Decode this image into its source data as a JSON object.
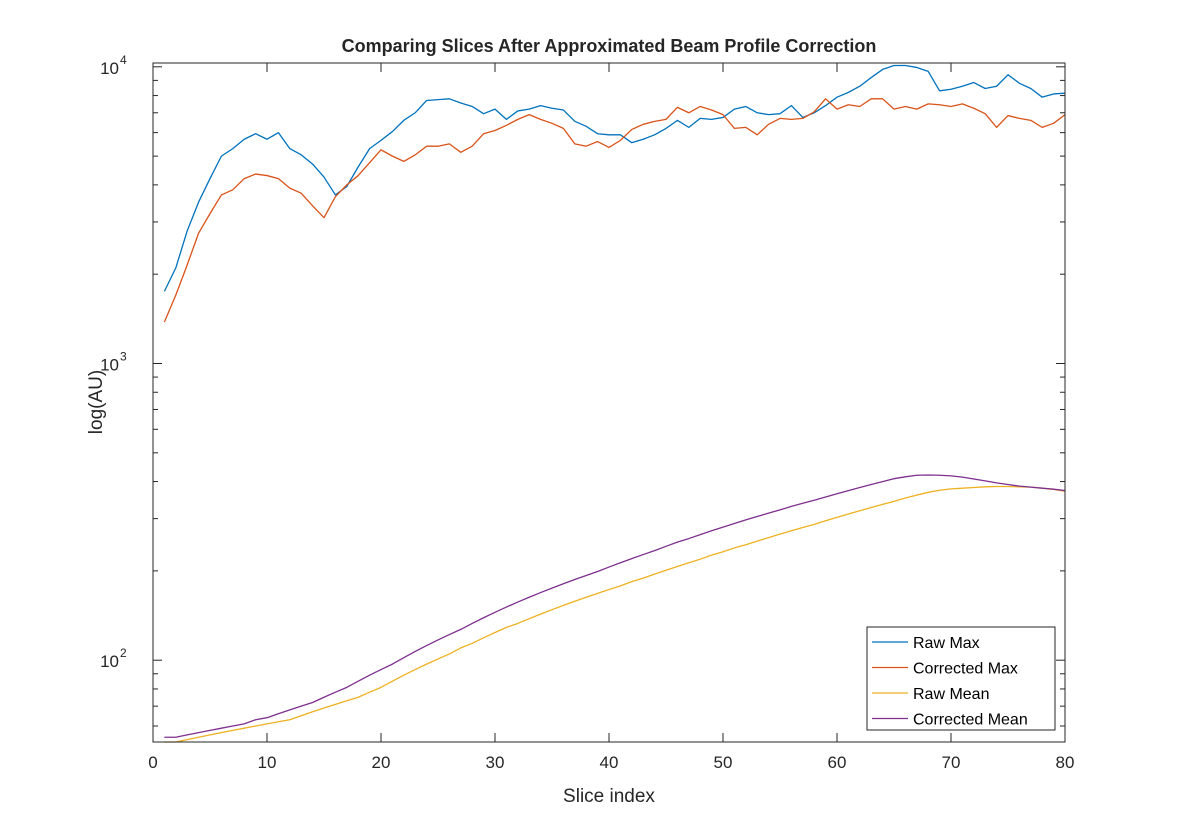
{
  "chart_data": {
    "type": "line",
    "title": "Comparing Slices After Approximated Beam Profile Correction",
    "xlabel": "Slice index",
    "ylabel": "log(AU)",
    "xlim": [
      0,
      80
    ],
    "ylim": [
      53,
      10300
    ],
    "yscale": "log",
    "grid": false,
    "legend_position": "bottom-right",
    "x_ticks": [
      "0",
      "10",
      "20",
      "30",
      "40",
      "50",
      "60",
      "70",
      "80"
    ],
    "y_ticks": [
      {
        "base": "10",
        "exp": "2",
        "value": 100
      },
      {
        "base": "10",
        "exp": "3",
        "value": 1000
      },
      {
        "base": "10",
        "exp": "4",
        "value": 10000
      }
    ],
    "x": [
      1,
      2,
      3,
      4,
      5,
      6,
      7,
      8,
      9,
      10,
      11,
      12,
      13,
      14,
      15,
      16,
      17,
      18,
      19,
      20,
      21,
      22,
      23,
      24,
      25,
      26,
      27,
      28,
      29,
      30,
      31,
      32,
      33,
      34,
      35,
      36,
      37,
      38,
      39,
      40,
      41,
      42,
      43,
      44,
      45,
      46,
      47,
      48,
      49,
      50,
      51,
      52,
      53,
      54,
      55,
      56,
      57,
      58,
      59,
      60,
      61,
      62,
      63,
      64,
      65,
      66,
      67,
      68,
      69,
      70,
      71,
      72,
      73,
      74,
      75,
      76,
      77,
      78,
      79,
      80
    ],
    "series": [
      {
        "name": "Raw Max",
        "color": "#0072BD",
        "values": [
          1750,
          2100,
          2800,
          3500,
          4200,
          5000,
          5300,
          5700,
          5950,
          5700,
          6000,
          5300,
          5050,
          4700,
          4250,
          3700,
          3950,
          4600,
          5300,
          5650,
          6050,
          6600,
          7000,
          7700,
          7750,
          7800,
          7550,
          7350,
          6950,
          7200,
          6650,
          7100,
          7200,
          7400,
          7250,
          7150,
          6550,
          6300,
          5950,
          5900,
          5900,
          5550,
          5700,
          5900,
          6200,
          6600,
          6250,
          6700,
          6650,
          6750,
          7200,
          7350,
          7000,
          6900,
          6950,
          7400,
          6750,
          7000,
          7400,
          7900,
          8200,
          8600,
          9200,
          9800,
          10100,
          10100,
          9950,
          9650,
          8300,
          8400,
          8600,
          8850,
          8450,
          8600,
          9400,
          8800,
          8450,
          7900,
          8100,
          8150
        ]
      },
      {
        "name": "Corrected Max",
        "color": "#D95319",
        "values": [
          1380,
          1700,
          2150,
          2750,
          3200,
          3700,
          3850,
          4200,
          4350,
          4300,
          4200,
          3900,
          3750,
          3400,
          3100,
          3650,
          4000,
          4300,
          4750,
          5250,
          5000,
          4800,
          5050,
          5400,
          5400,
          5500,
          5150,
          5400,
          5950,
          6100,
          6350,
          6650,
          6900,
          6650,
          6450,
          6200,
          5500,
          5400,
          5600,
          5350,
          5650,
          6150,
          6400,
          6550,
          6650,
          7300,
          7000,
          7350,
          7150,
          6900,
          6200,
          6250,
          5900,
          6400,
          6700,
          6650,
          6700,
          7050,
          7800,
          7200,
          7450,
          7350,
          7800,
          7800,
          7200,
          7350,
          7200,
          7500,
          7450,
          7350,
          7500,
          7250,
          6950,
          6250,
          6850,
          6700,
          6600,
          6250,
          6450,
          6900
        ]
      },
      {
        "name": "Raw Mean",
        "color": "#EDB120",
        "values": [
          53,
          53,
          54,
          55,
          56,
          57,
          58,
          59,
          60,
          61,
          62,
          63,
          65,
          67,
          69,
          71,
          73,
          75,
          78,
          81,
          85,
          89,
          93,
          97,
          101,
          105,
          110,
          114,
          119,
          124,
          129,
          133,
          138,
          143,
          148,
          153,
          158,
          163,
          168,
          173,
          178,
          184,
          189,
          195,
          201,
          207,
          213,
          219,
          226,
          232,
          239,
          245,
          252,
          259,
          266,
          273,
          280,
          287,
          295,
          303,
          311,
          319,
          327,
          335,
          343,
          352,
          360,
          368,
          374,
          378,
          380,
          382,
          384,
          385,
          385,
          384,
          383,
          380,
          376,
          371
        ]
      },
      {
        "name": "Corrected Mean",
        "color": "#7E2F8E",
        "values": [
          55,
          55,
          56,
          57,
          58,
          59,
          60,
          61,
          63,
          64,
          66,
          68,
          70,
          72,
          75,
          78,
          81,
          85,
          89,
          93,
          97,
          102,
          107,
          112,
          117,
          122,
          127,
          133,
          139,
          145,
          151,
          157,
          163,
          169,
          175,
          181,
          187,
          193,
          199,
          206,
          213,
          220,
          227,
          234,
          242,
          250,
          257,
          265,
          273,
          281,
          289,
          297,
          305,
          313,
          321,
          330,
          338,
          346,
          355,
          364,
          373,
          382,
          391,
          400,
          409,
          415,
          420,
          421,
          420,
          418,
          414,
          408,
          402,
          396,
          391,
          386,
          383,
          380,
          377,
          373
        ]
      }
    ]
  }
}
